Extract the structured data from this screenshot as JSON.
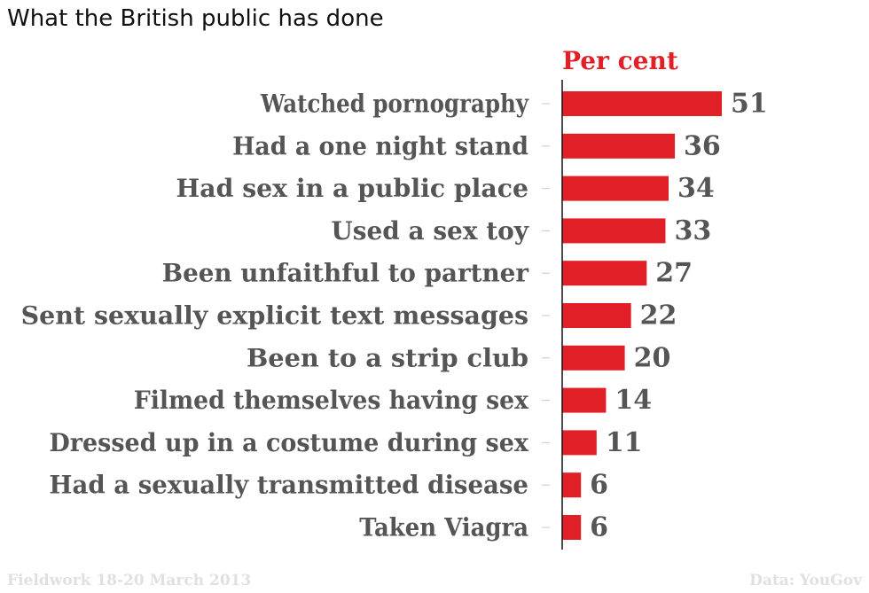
{
  "title": "What the British public has done",
  "footer": {
    "left": "Fieldwork 18-20 March 2013",
    "right": "Data: YouGov"
  },
  "colors": {
    "bar": "#e11f27",
    "header": "#e11f27",
    "label": "#555555",
    "axis": "#111111",
    "tick": "#c8c8c8",
    "footer": "#e0e0e0"
  },
  "chart_data": {
    "type": "bar",
    "orientation": "horizontal",
    "value_header": "Per cent",
    "categories": [
      "Watched pornography",
      "Had a one night stand",
      "Had sex in a public place",
      "Used a sex toy",
      "Been unfaithful to partner",
      "Sent sexually explicit text messages",
      "Been to a strip club",
      "Filmed themselves having sex",
      "Dressed up in a costume during sex",
      "Had a sexually transmitted disease",
      "Taken Viagra"
    ],
    "values": [
      51,
      36,
      34,
      33,
      27,
      22,
      20,
      14,
      11,
      6,
      6
    ],
    "xlim": [
      0,
      51
    ],
    "grid": false,
    "legend": "none"
  }
}
